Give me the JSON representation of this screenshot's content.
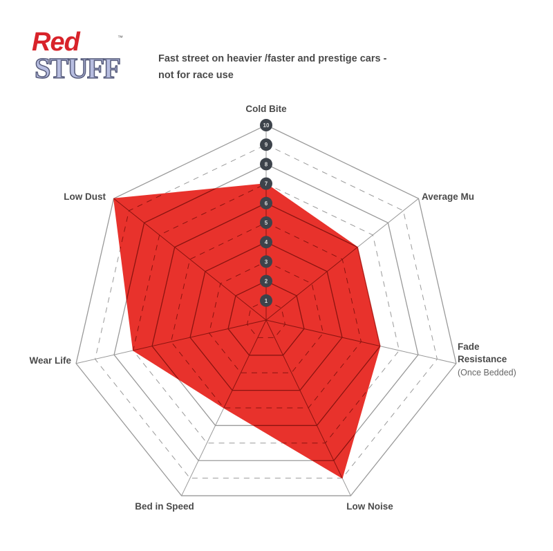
{
  "logo": {
    "line1": "Red",
    "line2": "STUFF",
    "tm": "™"
  },
  "subtitle_lines": [
    "Fast street on heavier /faster and prestige cars -",
    "not for race use"
  ],
  "chart_data": {
    "type": "radar",
    "title": "",
    "axes": [
      {
        "label": "Cold Bite",
        "sublabel": ""
      },
      {
        "label": "Average Mu",
        "sublabel": ""
      },
      {
        "label": "Fade Resistance",
        "sublabel": "(Once Bedded)"
      },
      {
        "label": "Low Noise",
        "sublabel": ""
      },
      {
        "label": "Bed in Speed",
        "sublabel": ""
      },
      {
        "label": "Wear Life",
        "sublabel": ""
      },
      {
        "label": "Low Dust",
        "sublabel": ""
      }
    ],
    "values": [
      7,
      6,
      6,
      9,
      5,
      7,
      10
    ],
    "range": [
      0,
      10
    ],
    "tick_labels": [
      "1",
      "2",
      "3",
      "4",
      "5",
      "6",
      "7",
      "8",
      "9",
      "10"
    ],
    "fill_color": "#e8322c",
    "grid_color": "#999999",
    "marker_color": "#3d434b"
  }
}
